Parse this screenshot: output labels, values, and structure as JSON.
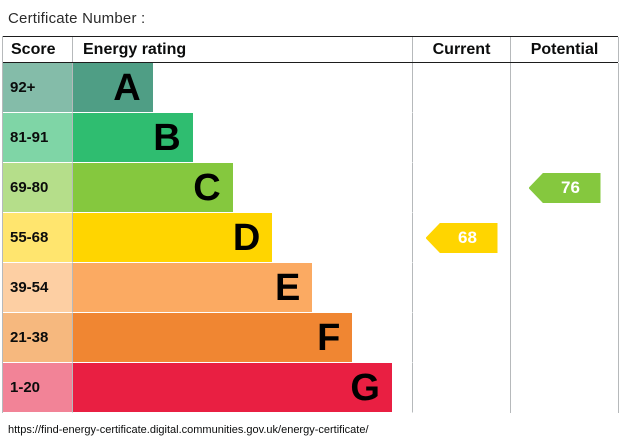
{
  "title": "Certificate Number :",
  "table": {
    "headers": {
      "score": "Score",
      "rating": "Energy rating",
      "current": "Current",
      "potential": "Potential"
    }
  },
  "chart_data": {
    "type": "bar",
    "title": "EPC energy efficiency rating chart",
    "bands": [
      {
        "score": "92+",
        "letter": "A",
        "color": "#4f9e85",
        "tint": "#84bca9",
        "width_pct": 23.5
      },
      {
        "score": "81-91",
        "letter": "B",
        "color": "#2fbd70",
        "tint": "#7fd5a6",
        "width_pct": 35.3
      },
      {
        "score": "69-80",
        "letter": "C",
        "color": "#85c83e",
        "tint": "#b5de8a",
        "width_pct": 47.1
      },
      {
        "score": "55-68",
        "letter": "D",
        "color": "#ffd500",
        "tint": "#ffe56e",
        "width_pct": 58.8
      },
      {
        "score": "39-54",
        "letter": "E",
        "color": "#fbaa62",
        "tint": "#fdcfa3",
        "width_pct": 70.6
      },
      {
        "score": "21-38",
        "letter": "F",
        "color": "#f08632",
        "tint": "#f6b87e",
        "width_pct": 82.4
      },
      {
        "score": "1-20",
        "letter": "G",
        "color": "#e91f42",
        "tint": "#f28397",
        "width_pct": 94.1
      }
    ],
    "current": {
      "value": 68,
      "band": "D",
      "color": "#ffd500"
    },
    "potential": {
      "value": 76,
      "band": "C",
      "color": "#85c83e"
    }
  },
  "footer_url": "https://find-energy-certificate.digital.communities.gov.uk/energy-certificate/"
}
